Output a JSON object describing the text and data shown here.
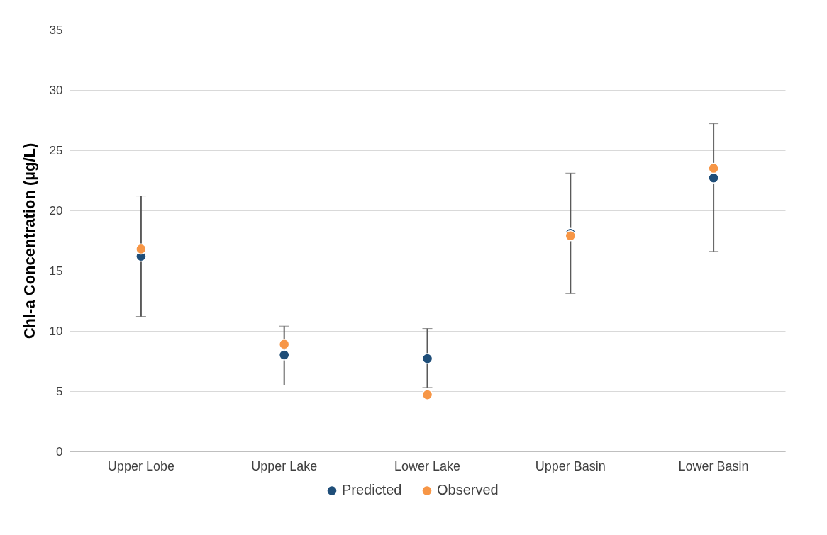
{
  "chart_data": {
    "type": "scatter",
    "ylabel": "Chl-a Concentration (µg/L)",
    "categories": [
      "Upper Lobe",
      "Upper Lake",
      "Lower Lake",
      "Upper Basin",
      "Lower Basin"
    ],
    "series": [
      {
        "name": "Predicted",
        "color": "#1f4e79",
        "values": [
          16.2,
          8.0,
          7.7,
          18.1,
          22.7
        ],
        "errors": [
          [
            11.2,
            21.2
          ],
          [
            5.5,
            10.4
          ],
          [
            5.3,
            10.2
          ],
          [
            13.1,
            23.1
          ],
          [
            16.6,
            27.2
          ]
        ]
      },
      {
        "name": "Observed",
        "color": "#f79646",
        "values": [
          16.8,
          8.9,
          4.7,
          17.9,
          23.5
        ]
      }
    ],
    "ylim": [
      0,
      35
    ],
    "yticks": [
      0,
      5,
      10,
      15,
      20,
      25,
      30,
      35
    ],
    "grid": "y",
    "legend": "bottom",
    "marker": "circle"
  }
}
